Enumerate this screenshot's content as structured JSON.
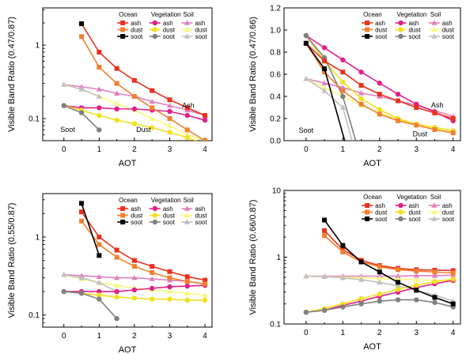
{
  "legend_groups": [
    {
      "name": "Ocean",
      "color": "#e8321e",
      "dust_color": "#f08030",
      "soot_color": "#000000",
      "marker": "square"
    },
    {
      "name": "Vegetation",
      "color": "#e0208a",
      "dust_color": "#f0e020",
      "soot_color": "#808080",
      "marker": "circle"
    },
    {
      "name": "Soil",
      "color": "#e080c0",
      "dust_color": "#f8f880",
      "soot_color": "#c0c0c0",
      "marker": "triangle"
    }
  ],
  "legend_entries": [
    "ash",
    "dust",
    "soot"
  ],
  "chart_data": [
    {
      "id": "tl",
      "type": "line",
      "xlabel": "AOT",
      "ylabel": "Visible Band Ratio (0.47/0.87)",
      "ylog": true,
      "xlim": [
        -0.6,
        4.2
      ],
      "ylim": [
        0.05,
        3.2
      ],
      "xticks": [
        0,
        1,
        2,
        3,
        4
      ],
      "yticks": [
        0.1,
        1
      ],
      "ytick_labels": [
        "0.1",
        "1"
      ],
      "annotations": [
        {
          "text": "Ash",
          "x": 3.35,
          "y": 0.14
        },
        {
          "text": "Dust",
          "x": 2.05,
          "y": 0.066
        },
        {
          "text": "Soot",
          "x": -0.1,
          "y": 0.066
        }
      ],
      "series": [
        {
          "group": "Ocean",
          "kind": "ash",
          "x": [
            0.5,
            1,
            1.5,
            2,
            2.5,
            3,
            3.5,
            4
          ],
          "y": [
            1.95,
            0.8,
            0.48,
            0.33,
            0.24,
            0.18,
            0.14,
            0.11
          ]
        },
        {
          "group": "Ocean",
          "kind": "dust",
          "x": [
            0.5,
            1,
            1.5,
            2,
            2.5,
            3,
            3.5,
            4
          ],
          "y": [
            1.3,
            0.5,
            0.3,
            0.2,
            0.14,
            0.1,
            0.07,
            0.05
          ]
        },
        {
          "group": "Ocean",
          "kind": "soot",
          "x": [
            0.5
          ],
          "y": [
            1.95
          ]
        },
        {
          "group": "Vegetation",
          "kind": "ash",
          "x": [
            0,
            0.5,
            1,
            1.5,
            2,
            2.5,
            3,
            3.5,
            4
          ],
          "y": [
            0.15,
            0.14,
            0.14,
            0.135,
            0.135,
            0.13,
            0.125,
            0.11,
            0.095
          ]
        },
        {
          "group": "Vegetation",
          "kind": "dust",
          "x": [
            0,
            0.5,
            1,
            1.5,
            2,
            2.5,
            3,
            3.5,
            4
          ],
          "y": [
            0.15,
            0.13,
            0.11,
            0.095,
            0.085,
            0.075,
            0.065,
            0.055,
            0.045
          ]
        },
        {
          "group": "Vegetation",
          "kind": "soot",
          "x": [
            0,
            0.5,
            1
          ],
          "y": [
            0.15,
            0.12,
            0.07
          ]
        },
        {
          "group": "Soil",
          "kind": "ash",
          "x": [
            0,
            0.5,
            1,
            1.5,
            2,
            2.5,
            3,
            3.5,
            4
          ],
          "y": [
            0.29,
            0.27,
            0.25,
            0.22,
            0.2,
            0.17,
            0.15,
            0.13,
            0.11
          ]
        },
        {
          "group": "Soil",
          "kind": "dust",
          "x": [
            0,
            0.5,
            1,
            1.5,
            2,
            2.5,
            3,
            3.5,
            4
          ],
          "y": [
            0.29,
            0.25,
            0.2,
            0.16,
            0.13,
            0.1,
            0.08,
            0.06,
            0.05
          ]
        },
        {
          "group": "Soil",
          "kind": "soot",
          "x": [
            0,
            0.5,
            1
          ],
          "y": [
            0.29,
            0.25,
            0.2
          ]
        }
      ]
    },
    {
      "id": "tr",
      "type": "line",
      "xlabel": "AOT",
      "ylabel": "Visible Band Ratio (0.47/0.66)",
      "ylog": false,
      "xlim": [
        -0.6,
        4.2
      ],
      "ylim": [
        0,
        1.2
      ],
      "xticks": [
        0,
        1,
        2,
        3,
        4
      ],
      "yticks": [
        0,
        0.2,
        0.4,
        0.6,
        0.8,
        1.0,
        1.2
      ],
      "ytick_labels": [
        "0.0",
        "0.2",
        "0.4",
        "0.6",
        "0.8",
        "1.0",
        "1.2"
      ],
      "annotations": [
        {
          "text": "Ash",
          "x": 3.4,
          "y": 0.3
        },
        {
          "text": "Dust",
          "x": 2.9,
          "y": 0.04
        },
        {
          "text": "Soot",
          "x": -0.2,
          "y": 0.07
        }
      ],
      "series": [
        {
          "group": "Ocean",
          "kind": "ash",
          "x": [
            0,
            0.5,
            1,
            1.5,
            2,
            2.5,
            3,
            3.5,
            4
          ],
          "y": [
            0.88,
            0.72,
            0.62,
            0.5,
            0.42,
            0.36,
            0.3,
            0.25,
            0.2
          ]
        },
        {
          "group": "Ocean",
          "kind": "dust",
          "x": [
            0,
            0.5,
            1,
            1.5,
            2,
            2.5,
            3,
            3.5,
            4
          ],
          "y": [
            0.88,
            0.62,
            0.45,
            0.33,
            0.24,
            0.18,
            0.14,
            0.1,
            0.07
          ]
        },
        {
          "group": "Ocean",
          "kind": "soot",
          "x": [
            0,
            0.5,
            1.05
          ],
          "y": [
            0.88,
            0.65,
            0
          ]
        },
        {
          "group": "Vegetation",
          "kind": "ash",
          "x": [
            0,
            0.5,
            1,
            1.5,
            2,
            2.5,
            3,
            3.5,
            4
          ],
          "y": [
            0.95,
            0.84,
            0.73,
            0.62,
            0.52,
            0.42,
            0.33,
            0.26,
            0.18
          ]
        },
        {
          "group": "Vegetation",
          "kind": "dust",
          "x": [
            0,
            0.5,
            1,
            1.5,
            2,
            2.5,
            3,
            3.5,
            4
          ],
          "y": [
            0.95,
            0.72,
            0.53,
            0.38,
            0.28,
            0.2,
            0.15,
            0.12,
            0.09
          ]
        },
        {
          "group": "Vegetation",
          "kind": "soot",
          "x": [
            0,
            0.5,
            1,
            1.35
          ],
          "y": [
            0.95,
            0.75,
            0.4,
            0
          ]
        },
        {
          "group": "Soil",
          "kind": "ash",
          "x": [
            0,
            0.5,
            1,
            1.5,
            2,
            2.5,
            3,
            3.5,
            4
          ],
          "y": [
            0.56,
            0.52,
            0.48,
            0.43,
            0.4,
            0.36,
            0.32,
            0.27,
            0.22
          ]
        },
        {
          "group": "Soil",
          "kind": "dust",
          "x": [
            0,
            0.5,
            1,
            1.5,
            2,
            2.5,
            3,
            3.5,
            4
          ],
          "y": [
            0.56,
            0.48,
            0.4,
            0.32,
            0.25,
            0.19,
            0.15,
            0.11,
            0.08
          ]
        },
        {
          "group": "Soil",
          "kind": "soot",
          "x": [
            0,
            0.5,
            1,
            1.25
          ],
          "y": [
            0.56,
            0.45,
            0.3,
            0
          ]
        }
      ]
    },
    {
      "id": "bl",
      "type": "line",
      "xlabel": "AOT",
      "ylabel": "Visible Band Ratio (0.55/0.87)",
      "ylog": true,
      "xlim": [
        -0.6,
        4.2
      ],
      "ylim": [
        0.07,
        3.6
      ],
      "xticks": [
        0,
        1,
        2,
        3,
        4
      ],
      "yticks": [
        0.1,
        1
      ],
      "ytick_labels": [
        "0.1",
        "1"
      ],
      "annotations": [],
      "series": [
        {
          "group": "Ocean",
          "kind": "ash",
          "x": [
            0.5,
            1,
            1.5,
            2,
            2.5,
            3,
            3.5,
            4
          ],
          "y": [
            2.1,
            1.0,
            0.68,
            0.5,
            0.42,
            0.36,
            0.31,
            0.28
          ]
        },
        {
          "group": "Ocean",
          "kind": "dust",
          "x": [
            0.5,
            1,
            1.5,
            2,
            2.5,
            3,
            3.5,
            4
          ],
          "y": [
            1.6,
            0.8,
            0.55,
            0.42,
            0.35,
            0.3,
            0.27,
            0.25
          ]
        },
        {
          "group": "Ocean",
          "kind": "soot",
          "x": [
            0.5,
            1
          ],
          "y": [
            2.7,
            0.58
          ]
        },
        {
          "group": "Vegetation",
          "kind": "ash",
          "x": [
            0,
            0.5,
            1,
            1.5,
            2,
            2.5,
            3,
            3.5,
            4
          ],
          "y": [
            0.2,
            0.2,
            0.2,
            0.2,
            0.21,
            0.22,
            0.23,
            0.235,
            0.24
          ]
        },
        {
          "group": "Vegetation",
          "kind": "dust",
          "x": [
            0,
            0.5,
            1,
            1.5,
            2,
            2.5,
            3,
            3.5,
            4
          ],
          "y": [
            0.2,
            0.19,
            0.18,
            0.17,
            0.165,
            0.16,
            0.16,
            0.155,
            0.155
          ]
        },
        {
          "group": "Vegetation",
          "kind": "soot",
          "x": [
            0,
            0.5,
            1,
            1.5
          ],
          "y": [
            0.2,
            0.19,
            0.16,
            0.09
          ]
        },
        {
          "group": "Soil",
          "kind": "ash",
          "x": [
            0,
            0.5,
            1,
            1.5,
            2,
            2.5,
            3,
            3.5,
            4
          ],
          "y": [
            0.33,
            0.32,
            0.31,
            0.3,
            0.3,
            0.29,
            0.28,
            0.27,
            0.25
          ]
        },
        {
          "group": "Soil",
          "kind": "dust",
          "x": [
            0,
            0.5,
            1,
            1.5,
            2,
            2.5,
            3,
            3.5,
            4
          ],
          "y": [
            0.33,
            0.29,
            0.26,
            0.24,
            0.22,
            0.21,
            0.2,
            0.19,
            0.18
          ]
        },
        {
          "group": "Soil",
          "kind": "soot",
          "x": [
            0,
            0.5,
            1,
            1.5
          ],
          "y": [
            0.33,
            0.3,
            0.26,
            0.2
          ]
        }
      ]
    },
    {
      "id": "br",
      "type": "line",
      "xlabel": "AOT",
      "ylabel": "Visible Band Ratio (0.66/0.87)",
      "ylog": true,
      "xlim": [
        -0.6,
        4.2
      ],
      "ylim": [
        0.1,
        10
      ],
      "xticks": [
        0,
        1,
        2,
        3,
        4
      ],
      "yticks": [
        0.1,
        1,
        10
      ],
      "ytick_labels": [
        "0.1",
        "1",
        "10"
      ],
      "annotations": [],
      "series": [
        {
          "group": "Ocean",
          "kind": "ash",
          "x": [
            0.5,
            1,
            1.5,
            2,
            2.5,
            3,
            3.5,
            4
          ],
          "y": [
            2.5,
            1.3,
            0.9,
            0.75,
            0.68,
            0.65,
            0.64,
            0.63
          ]
        },
        {
          "group": "Ocean",
          "kind": "dust",
          "x": [
            0.5,
            1,
            1.5,
            2,
            2.5,
            3,
            3.5,
            4
          ],
          "y": [
            2.1,
            1.2,
            0.85,
            0.72,
            0.65,
            0.62,
            0.6,
            0.58
          ]
        },
        {
          "group": "Ocean",
          "kind": "soot",
          "x": [
            0.5,
            1,
            1.5,
            2,
            2.5,
            3,
            3.5,
            4
          ],
          "y": [
            3.6,
            1.5,
            0.85,
            0.6,
            0.42,
            0.32,
            0.25,
            0.2
          ]
        },
        {
          "group": "Vegetation",
          "kind": "ash",
          "x": [
            0,
            0.5,
            1,
            1.5,
            2,
            2.5,
            3,
            3.5,
            4
          ],
          "y": [
            0.15,
            0.16,
            0.19,
            0.22,
            0.26,
            0.3,
            0.35,
            0.4,
            0.45
          ]
        },
        {
          "group": "Vegetation",
          "kind": "dust",
          "x": [
            0,
            0.5,
            1,
            1.5,
            2,
            2.5,
            3,
            3.5,
            4
          ],
          "y": [
            0.15,
            0.17,
            0.2,
            0.24,
            0.28,
            0.33,
            0.38,
            0.43,
            0.47
          ]
        },
        {
          "group": "Vegetation",
          "kind": "soot",
          "x": [
            0,
            0.5,
            1,
            1.5,
            2,
            2.5,
            3,
            3.5,
            4
          ],
          "y": [
            0.15,
            0.16,
            0.18,
            0.2,
            0.22,
            0.23,
            0.23,
            0.21,
            0.18
          ]
        },
        {
          "group": "Soil",
          "kind": "ash",
          "x": [
            0,
            0.5,
            1,
            1.5,
            2,
            2.5,
            3,
            3.5,
            4
          ],
          "y": [
            0.52,
            0.52,
            0.52,
            0.52,
            0.52,
            0.52,
            0.53,
            0.53,
            0.54
          ]
        },
        {
          "group": "Soil",
          "kind": "dust",
          "x": [
            0,
            0.5,
            1,
            1.5,
            2,
            2.5,
            3,
            3.5,
            4
          ],
          "y": [
            0.52,
            0.51,
            0.5,
            0.49,
            0.48,
            0.47,
            0.46,
            0.45,
            0.44
          ]
        },
        {
          "group": "Soil",
          "kind": "soot",
          "x": [
            0,
            0.5,
            1,
            1.5,
            2,
            2.5,
            3,
            3.5,
            4
          ],
          "y": [
            0.52,
            0.51,
            0.49,
            0.46,
            0.42,
            0.37,
            0.32,
            0.27,
            0.22
          ]
        }
      ]
    }
  ]
}
